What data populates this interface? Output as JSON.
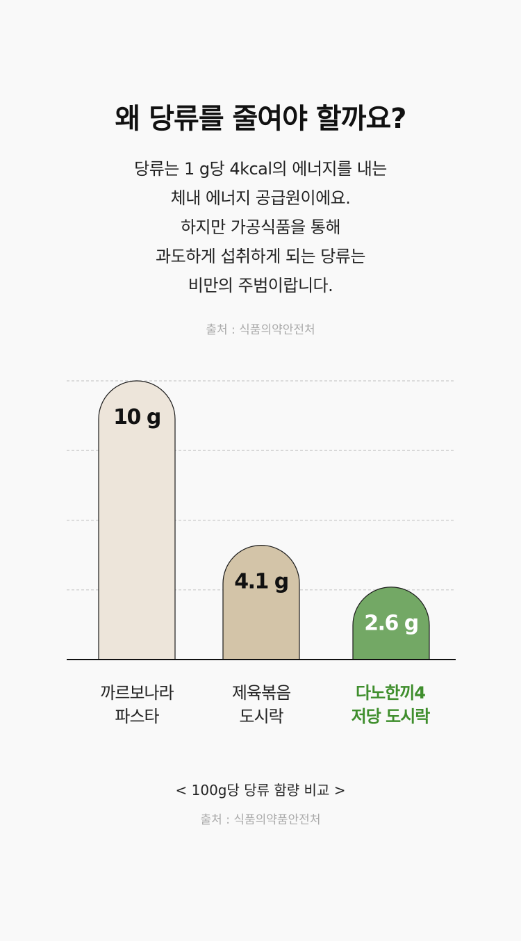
{
  "heading": "왜 당류를 줄여야 할까요?",
  "description_lines": [
    "당류는 1 g당 4kcal의 에너지를 내는",
    "체내 에너지 공급원이에요.",
    "하지만 가공식품을 통해",
    "과도하게 섭취하게 되는 당류는",
    "비만의 주범이랍니다."
  ],
  "source_top": "출처 : 식품의약안전처",
  "chart_caption": "< 100g당 당류 함량 비교 >",
  "source_bottom": "출처 : 식품의약품안전처",
  "colors": {
    "bar1": "#ede5da",
    "bar2": "#d3c4a8",
    "bar3": "#73a865",
    "highlight_text": "#3f8e2d",
    "grid": "#cccccc"
  },
  "chart_data": {
    "type": "bar",
    "categories": [
      [
        "까르보나라",
        "파스타"
      ],
      [
        "제육볶음",
        "도시락"
      ],
      [
        "다노한끼4",
        "저당 도시락"
      ]
    ],
    "values": [
      10,
      4.1,
      2.6
    ],
    "value_labels": [
      "10 g",
      "4.1 g",
      "2.6 g"
    ],
    "unit": "g",
    "ylim": [
      0,
      10
    ],
    "grid": true,
    "highlight_index": 2
  }
}
